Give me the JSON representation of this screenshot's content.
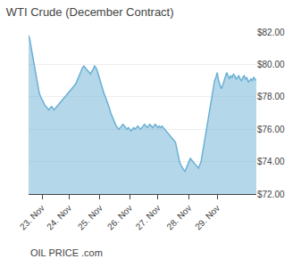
{
  "chart_data": {
    "type": "area",
    "title": "WTI Crude (December Contract)",
    "annotations": [
      "OIL",
      "PRICE",
      ".com"
    ],
    "categories": [
      null,
      null,
      null,
      null,
      null,
      null,
      null,
      null,
      null,
      null,
      "23. Nov",
      null,
      null,
      null,
      null,
      null,
      null,
      null,
      null,
      null,
      null,
      null,
      null,
      null,
      null,
      null,
      null,
      null,
      null,
      null,
      "24. Nov",
      null,
      null,
      null,
      null,
      null,
      null,
      null,
      null,
      null,
      null,
      null,
      null,
      null,
      null,
      null,
      null,
      null,
      null,
      null,
      null,
      null,
      null,
      "25. Nov",
      null,
      null,
      null,
      null,
      null,
      null,
      null,
      null,
      null,
      null,
      null,
      null,
      null,
      null,
      null,
      null,
      null,
      null,
      null,
      null,
      null,
      "26. Nov",
      null,
      null,
      null,
      null,
      null,
      null,
      null,
      null,
      null,
      null,
      null,
      null,
      null,
      null,
      null,
      null,
      null,
      null,
      null,
      null,
      "27. Nov",
      null,
      null,
      null,
      null,
      null,
      null,
      null,
      null,
      null,
      null,
      null,
      null,
      null,
      null,
      null,
      null,
      null,
      null,
      null,
      null,
      null,
      null,
      "28. Nov",
      null,
      null,
      null,
      null,
      null,
      null,
      null,
      null,
      null,
      null,
      null,
      null,
      null,
      null,
      null,
      null,
      null,
      null,
      null,
      null,
      "29. Nov",
      null,
      null,
      null,
      null,
      null,
      null,
      null,
      null,
      null,
      null,
      null,
      null,
      null,
      null,
      null,
      null,
      null,
      null,
      null,
      null,
      null,
      null,
      null,
      null,
      null,
      null,
      null,
      null,
      null
    ],
    "values": [
      81.8,
      81.5,
      81.0,
      80.5,
      80.0,
      79.5,
      79.0,
      78.5,
      78.2,
      78.0,
      77.8,
      77.6,
      77.5,
      77.4,
      77.3,
      77.2,
      77.3,
      77.4,
      77.3,
      77.2,
      77.3,
      77.4,
      77.5,
      77.6,
      77.7,
      77.8,
      77.9,
      78.0,
      78.1,
      78.2,
      78.3,
      78.4,
      78.5,
      78.6,
      78.7,
      78.8,
      79.0,
      79.2,
      79.5,
      79.7,
      79.8,
      79.9,
      79.8,
      79.7,
      79.6,
      79.5,
      79.4,
      79.6,
      79.7,
      79.9,
      79.8,
      79.6,
      79.3,
      79.0,
      78.7,
      78.5,
      78.2,
      78.0,
      77.8,
      77.5,
      77.3,
      77.0,
      76.8,
      76.5,
      76.3,
      76.2,
      76.1,
      76.0,
      76.1,
      76.2,
      76.3,
      76.2,
      76.1,
      76.0,
      76.1,
      76.0,
      75.9,
      76.0,
      76.1,
      76.0,
      76.1,
      76.2,
      76.1,
      76.0,
      76.1,
      76.2,
      76.3,
      76.2,
      76.1,
      76.2,
      76.3,
      76.2,
      76.1,
      76.2,
      76.3,
      76.2,
      76.1,
      76.2,
      76.1,
      76.2,
      76.1,
      76.0,
      75.9,
      75.8,
      75.7,
      75.6,
      75.5,
      75.4,
      75.3,
      75.2,
      74.8,
      74.3,
      74.0,
      73.8,
      73.6,
      73.5,
      73.4,
      73.6,
      73.8,
      74.0,
      74.2,
      74.1,
      74.0,
      73.9,
      73.8,
      73.7,
      73.6,
      73.8,
      74.0,
      74.5,
      75.0,
      75.5,
      76.0,
      76.5,
      77.0,
      77.5,
      78.0,
      78.5,
      79.0,
      79.2,
      79.5,
      79.0,
      78.8,
      78.5,
      78.7,
      79.0,
      79.2,
      79.5,
      79.3,
      79.1,
      79.3,
      79.2,
      79.4,
      79.3,
      79.1,
      79.2,
      79.3,
      79.1,
      79.0,
      79.2,
      79.3,
      79.1,
      79.2,
      78.9,
      79.0,
      79.1,
      79.0,
      79.2,
      79.1,
      79.0
    ],
    "color": "#6ab0d4",
    "ylim": [
      72.0,
      82.0
    ],
    "yticks": [
      {
        "value": 72.0,
        "label": "$72.00"
      },
      {
        "value": 74.0,
        "label": "$74.00"
      },
      {
        "value": 76.0,
        "label": "$76.00"
      },
      {
        "value": 78.0,
        "label": "$78.00"
      },
      {
        "value": 80.0,
        "label": "$80.00"
      },
      {
        "value": 82.0,
        "label": "$82.00"
      }
    ],
    "grid": true
  }
}
